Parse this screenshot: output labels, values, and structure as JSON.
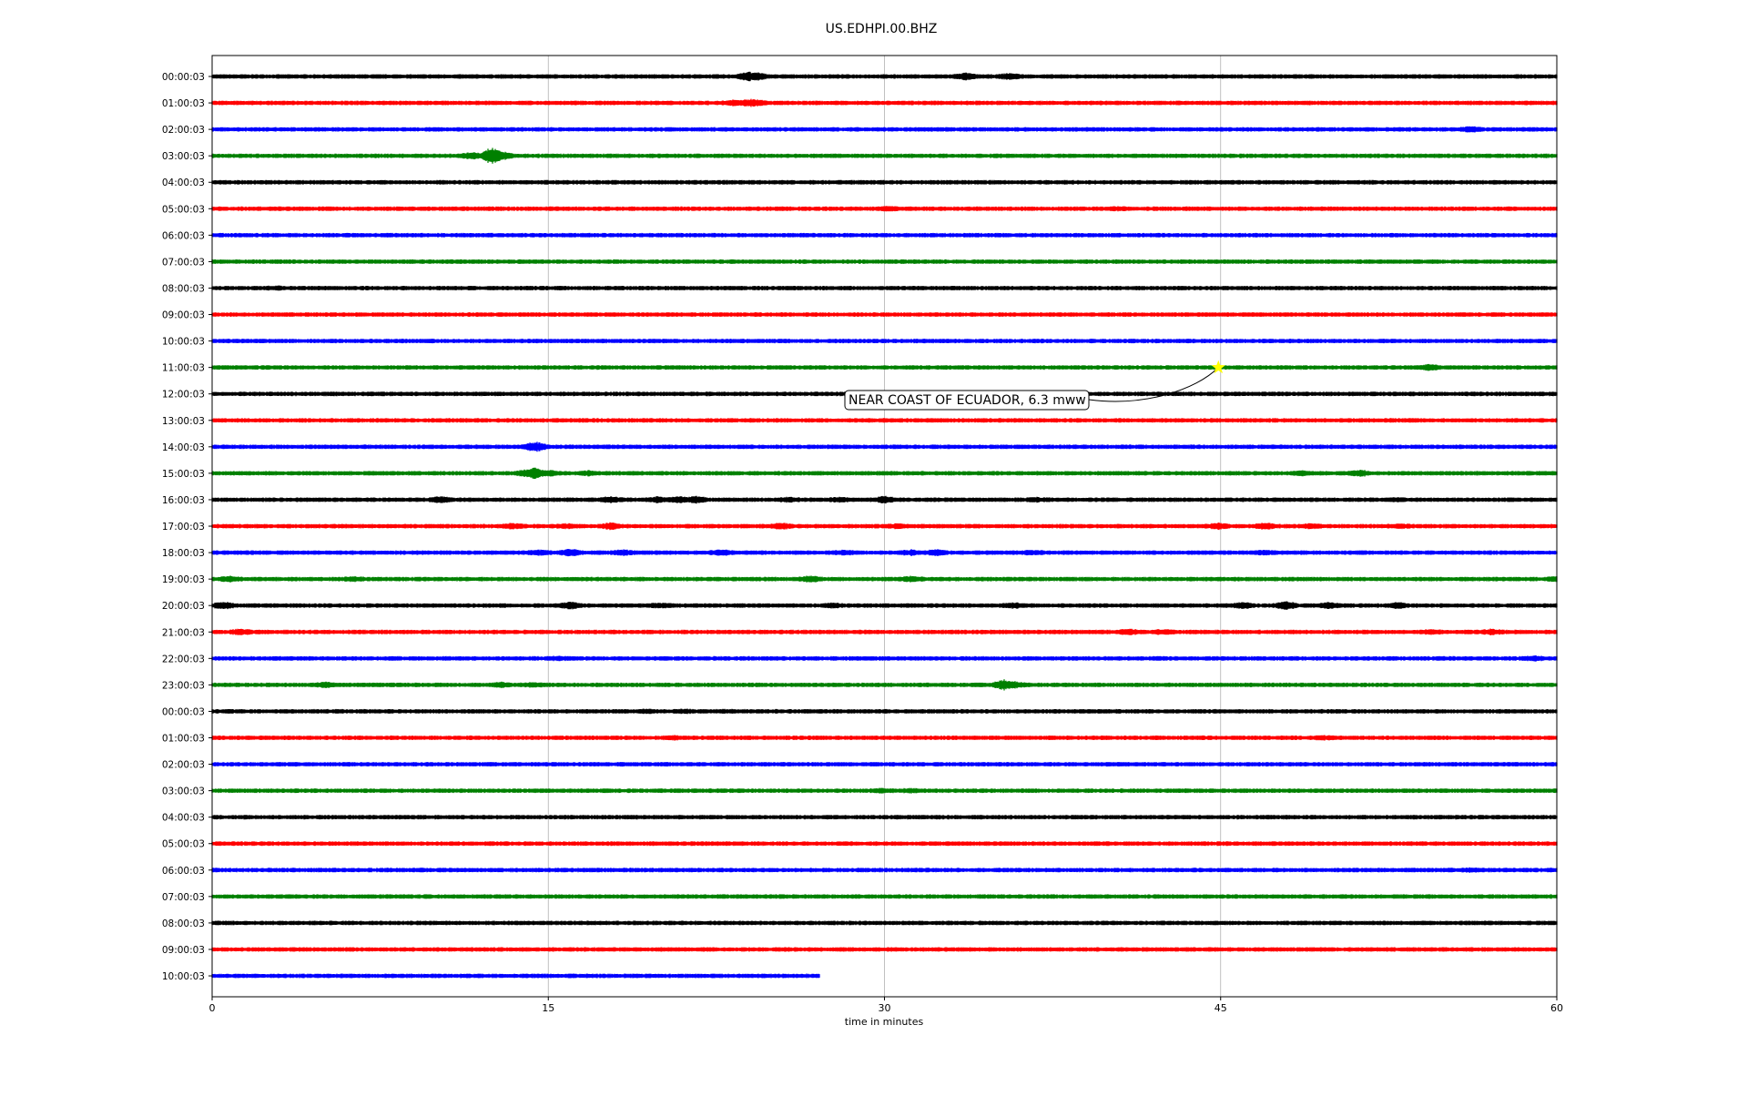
{
  "chart_data": {
    "type": "line",
    "title": "US.EDHPI.00.BHZ",
    "xlabel": "time in minutes",
    "ylabel": "",
    "xlim": [
      0,
      60
    ],
    "xticks": [
      0,
      15,
      30,
      45,
      60
    ],
    "grid": "vertical",
    "line_colors": [
      "#000000",
      "#ff0000",
      "#0000ff",
      "#008000"
    ],
    "highlight_color": "#ffff00",
    "rows": [
      {
        "label": "00:00:03",
        "color": "#000000",
        "end": 60,
        "bursts": [
          [
            23.9,
            3.5
          ],
          [
            24.3,
            2.5
          ],
          [
            33.6,
            2.2
          ],
          [
            35.6,
            2.0
          ]
        ]
      },
      {
        "label": "01:00:03",
        "color": "#ff0000",
        "end": 60,
        "bursts": [
          [
            23.3,
            2.0
          ],
          [
            24.0,
            2.5
          ],
          [
            24.2,
            2.2
          ]
        ]
      },
      {
        "label": "02:00:03",
        "color": "#0000ff",
        "end": 60,
        "bursts": [
          [
            56.2,
            1.5
          ]
        ]
      },
      {
        "label": "03:00:03",
        "color": "#008000",
        "end": 60,
        "bursts": [
          [
            11.6,
            2.2
          ],
          [
            12.5,
            8.0
          ],
          [
            12.9,
            3.0
          ]
        ]
      },
      {
        "label": "04:00:03",
        "color": "#000000",
        "end": 60,
        "bursts": []
      },
      {
        "label": "05:00:03",
        "color": "#ff0000",
        "end": 60,
        "bursts": [
          [
            30.2,
            1.2
          ],
          [
            40.5,
            0.8
          ]
        ]
      },
      {
        "label": "06:00:03",
        "color": "#0000ff",
        "end": 60,
        "bursts": []
      },
      {
        "label": "07:00:03",
        "color": "#008000",
        "end": 60,
        "bursts": []
      },
      {
        "label": "08:00:03",
        "color": "#000000",
        "end": 60,
        "bursts": [
          [
            2.8,
            0.8
          ]
        ]
      },
      {
        "label": "09:00:03",
        "color": "#ff0000",
        "end": 60,
        "bursts": []
      },
      {
        "label": "10:00:03",
        "color": "#0000ff",
        "end": 60,
        "bursts": []
      },
      {
        "label": "11:00:03",
        "color": "#008000",
        "end": 60,
        "bursts": [
          [
            54.3,
            2.0
          ]
        ]
      },
      {
        "label": "12:00:03",
        "color": "#000000",
        "end": 60,
        "bursts": [
          [
            36.1,
            0.8
          ]
        ]
      },
      {
        "label": "13:00:03",
        "color": "#ff0000",
        "end": 60,
        "bursts": []
      },
      {
        "label": "14:00:03",
        "color": "#0000ff",
        "end": 60,
        "bursts": [
          [
            14.4,
            4.0
          ]
        ]
      },
      {
        "label": "15:00:03",
        "color": "#008000",
        "end": 60,
        "bursts": [
          [
            14.0,
            2.0
          ],
          [
            14.4,
            5.0
          ],
          [
            15.0,
            2.0
          ],
          [
            16.8,
            1.2
          ],
          [
            48.6,
            1.2
          ],
          [
            51.2,
            2.0
          ]
        ]
      },
      {
        "label": "16:00:03",
        "color": "#000000",
        "end": 60,
        "bursts": [
          [
            10.2,
            2.0
          ],
          [
            17.8,
            1.8
          ],
          [
            19.9,
            1.8
          ],
          [
            20.8,
            2.5
          ],
          [
            21.6,
            2.2
          ],
          [
            25.7,
            1.2
          ],
          [
            28.0,
            1.2
          ],
          [
            30.0,
            2.0
          ],
          [
            36.8,
            1.0
          ],
          [
            52.7,
            0.8
          ]
        ]
      },
      {
        "label": "17:00:03",
        "color": "#ff0000",
        "end": 60,
        "bursts": [
          [
            13.4,
            1.5
          ],
          [
            15.9,
            1.2
          ],
          [
            17.8,
            2.2
          ],
          [
            25.4,
            1.8
          ],
          [
            30.6,
            1.2
          ],
          [
            44.9,
            2.0
          ],
          [
            47.0,
            2.0
          ],
          [
            49.0,
            1.2
          ],
          [
            53.0,
            1.0
          ]
        ]
      },
      {
        "label": "18:00:03",
        "color": "#0000ff",
        "end": 60,
        "bursts": [
          [
            14.6,
            1.5
          ],
          [
            16.0,
            2.5
          ],
          [
            18.3,
            1.5
          ],
          [
            22.7,
            1.8
          ],
          [
            28.2,
            1.2
          ],
          [
            31.2,
            1.5
          ],
          [
            32.3,
            1.8
          ],
          [
            36.6,
            1.2
          ],
          [
            47.0,
            1.0
          ]
        ]
      },
      {
        "label": "19:00:03",
        "color": "#008000",
        "end": 60,
        "bursts": [
          [
            0.8,
            1.5
          ],
          [
            6.3,
            1.0
          ],
          [
            26.7,
            2.0
          ],
          [
            31.2,
            1.6
          ],
          [
            60.0,
            1.0
          ]
        ]
      },
      {
        "label": "20:00:03",
        "color": "#000000",
        "end": 60,
        "bursts": [
          [
            0.5,
            2.2
          ],
          [
            16.0,
            2.5
          ],
          [
            20.0,
            1.2
          ],
          [
            27.7,
            1.2
          ],
          [
            35.8,
            1.5
          ],
          [
            46.0,
            1.8
          ],
          [
            47.9,
            3.0
          ],
          [
            49.8,
            1.8
          ],
          [
            52.9,
            1.8
          ]
        ]
      },
      {
        "label": "21:00:03",
        "color": "#ff0000",
        "end": 60,
        "bursts": [
          [
            1.3,
            2.0
          ],
          [
            40.9,
            1.8
          ],
          [
            42.4,
            1.2
          ],
          [
            54.4,
            1.2
          ],
          [
            57.1,
            1.5
          ]
        ]
      },
      {
        "label": "22:00:03",
        "color": "#0000ff",
        "end": 60,
        "bursts": [
          [
            15.5,
            1.0
          ],
          [
            59.0,
            1.2
          ]
        ]
      },
      {
        "label": "23:00:03",
        "color": "#008000",
        "end": 60,
        "bursts": [
          [
            5.1,
            1.5
          ],
          [
            12.9,
            1.4
          ],
          [
            14.3,
            1.0
          ],
          [
            35.3,
            4.0
          ],
          [
            35.8,
            2.0
          ]
        ]
      },
      {
        "label": "00:00:03",
        "color": "#000000",
        "end": 60,
        "bursts": [
          [
            19.4,
            0.8
          ],
          [
            21.1,
            0.8
          ],
          [
            22.8,
            0.6
          ]
        ]
      },
      {
        "label": "01:00:03",
        "color": "#ff0000",
        "end": 60,
        "bursts": [
          [
            20.6,
            0.8
          ],
          [
            49.6,
            1.0
          ]
        ]
      },
      {
        "label": "02:00:03",
        "color": "#0000ff",
        "end": 60,
        "bursts": []
      },
      {
        "label": "03:00:03",
        "color": "#008000",
        "end": 60,
        "bursts": [
          [
            29.9,
            1.0
          ],
          [
            31.2,
            0.8
          ]
        ]
      },
      {
        "label": "04:00:03",
        "color": "#000000",
        "end": 60,
        "bursts": []
      },
      {
        "label": "05:00:03",
        "color": "#ff0000",
        "end": 60,
        "bursts": []
      },
      {
        "label": "06:00:03",
        "color": "#0000ff",
        "end": 60,
        "bursts": [
          [
            56.2,
            0.8
          ]
        ]
      },
      {
        "label": "07:00:03",
        "color": "#008000",
        "end": 60,
        "bursts": []
      },
      {
        "label": "08:00:03",
        "color": "#000000",
        "end": 60,
        "bursts": []
      },
      {
        "label": "09:00:03",
        "color": "#ff0000",
        "end": 60,
        "bursts": []
      },
      {
        "label": "10:00:03",
        "color": "#0000ff",
        "end": 27.1,
        "bursts": []
      }
    ],
    "event": {
      "row": 11,
      "minute": 44.9,
      "label": "NEAR COAST OF ECUADOR, 6.3 mww"
    }
  }
}
